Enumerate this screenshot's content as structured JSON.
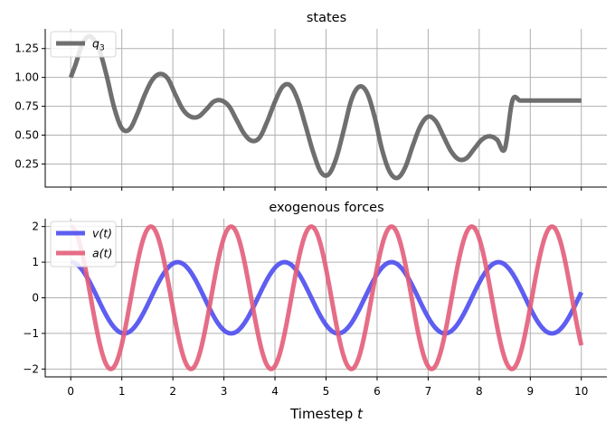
{
  "chart_data": [
    {
      "type": "line",
      "title": "states",
      "xlim": [
        -0.5,
        10.5
      ],
      "ylim": [
        0.05,
        1.42
      ],
      "yticks": [
        0.25,
        0.5,
        0.75,
        1.0,
        1.25
      ],
      "ytick_labels": [
        "0.25",
        "0.50",
        "0.75",
        "1.00",
        "1.25"
      ],
      "xticks": [
        0,
        1,
        2,
        3,
        4,
        5,
        6,
        7,
        8,
        9,
        10
      ],
      "grid": true,
      "legend_placement": "upper-left",
      "series": [
        {
          "name": "q",
          "name_subscript": "3",
          "color": "#5f5f5f",
          "x": [
            0,
            0.1,
            0.2,
            0.3,
            0.4,
            0.55,
            0.7,
            0.85,
            1.0,
            1.15,
            1.3,
            1.45,
            1.6,
            1.75,
            1.9,
            2.05,
            2.2,
            2.35,
            2.5,
            2.65,
            2.8,
            2.95,
            3.1,
            3.25,
            3.4,
            3.55,
            3.7,
            3.85,
            4.0,
            4.15,
            4.3,
            4.45,
            4.6,
            4.75,
            4.9,
            5.05,
            5.2,
            5.35,
            5.5,
            5.65,
            5.8,
            5.95,
            6.1,
            6.25,
            6.4,
            6.55,
            6.7,
            6.85,
            7.0,
            7.15,
            7.3,
            7.45,
            7.6,
            7.75,
            7.9,
            8.05,
            8.2,
            8.35,
            8.5,
            8.65,
            8.8,
            8.95,
            9.1,
            9.25,
            9.4,
            9.55,
            9.7,
            9.85,
            10.0
          ],
          "y": [
            1.0,
            1.12,
            1.26,
            1.34,
            1.35,
            1.25,
            1.02,
            0.74,
            0.56,
            0.55,
            0.68,
            0.85,
            0.98,
            1.03,
            0.99,
            0.85,
            0.72,
            0.66,
            0.66,
            0.72,
            0.79,
            0.8,
            0.75,
            0.63,
            0.51,
            0.45,
            0.48,
            0.62,
            0.79,
            0.92,
            0.93,
            0.8,
            0.58,
            0.35,
            0.18,
            0.16,
            0.3,
            0.55,
            0.81,
            0.92,
            0.87,
            0.66,
            0.37,
            0.18,
            0.13,
            0.22,
            0.41,
            0.58,
            0.66,
            0.62,
            0.49,
            0.36,
            0.29,
            0.3,
            0.38,
            0.46,
            0.49,
            0.46,
            0.38,
            0.8,
            0.8,
            0.8,
            0.8,
            0.8,
            0.8,
            0.8,
            0.8,
            0.8,
            0.8
          ]
        }
      ]
    },
    {
      "type": "line",
      "title": "exogenous forces",
      "xlabel": "Timestep",
      "xlabel_var": "t",
      "xlim": [
        -0.5,
        10.5
      ],
      "ylim": [
        -2.22,
        2.22
      ],
      "yticks": [
        -2,
        -1,
        0,
        1,
        2
      ],
      "ytick_labels": [
        "−2",
        "−1",
        "0",
        "1",
        "2"
      ],
      "xticks": [
        0,
        1,
        2,
        3,
        4,
        5,
        6,
        7,
        8,
        9,
        10
      ],
      "xtick_labels": [
        "0",
        "1",
        "2",
        "3",
        "4",
        "5",
        "6",
        "7",
        "8",
        "9",
        "10"
      ],
      "grid": true,
      "legend_placement": "upper-left",
      "series": [
        {
          "name": "v(t)",
          "color": "#4c4cf0",
          "function": "cos",
          "amplitude": 1,
          "omega": 3,
          "x_range": [
            0,
            10
          ]
        },
        {
          "name": "a(t)",
          "color": "#e35d7a",
          "function": "cos",
          "amplitude": 2,
          "omega": 4,
          "x_range": [
            0,
            10
          ]
        }
      ]
    }
  ]
}
